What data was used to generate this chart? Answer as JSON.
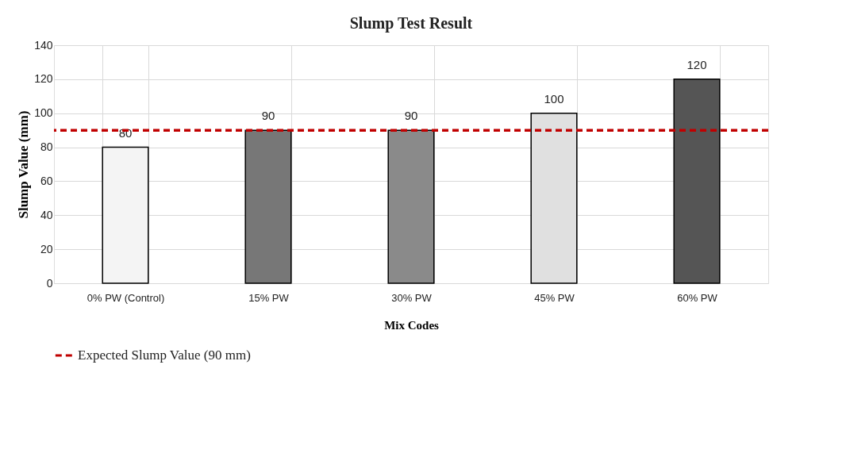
{
  "chart_data": {
    "type": "bar",
    "title": "Slump Test Result",
    "xlabel": "Mix Codes",
    "ylabel": "Slump Value (mm)",
    "categories": [
      "0% PW (Control)",
      "15% PW",
      "30% PW",
      "45% PW",
      "60% PW"
    ],
    "values": [
      80,
      90,
      90,
      100,
      120
    ],
    "colors": [
      "#f4f4f4",
      "#777777",
      "#8a8a8a",
      "#e0e0e0",
      "#555555"
    ],
    "ylim": [
      0,
      140
    ],
    "yticks": [
      0,
      20,
      40,
      60,
      80,
      100,
      120,
      140
    ],
    "grid": true,
    "data_labels": true,
    "legend": "bottom",
    "ref_lines": [
      {
        "axis": "y",
        "value": 90,
        "label": "Expected Slump Value (90 mm)",
        "color": "#c00000",
        "line_style": "dashed"
      }
    ]
  }
}
